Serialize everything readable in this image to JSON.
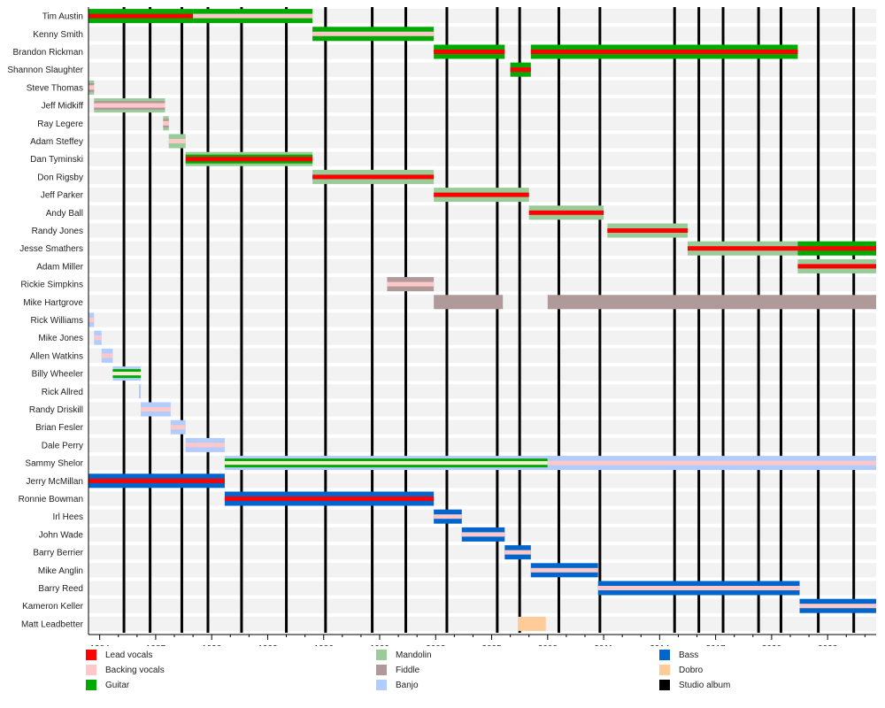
{
  "chart_data": {
    "type": "timeline",
    "xlim": [
      1983.4,
      2025.6
    ],
    "x_ticks": [
      1984,
      1987,
      1990,
      1993,
      1996,
      1999,
      2002,
      2005,
      2008,
      2011,
      2014,
      2017,
      2020,
      2023
    ],
    "colors": {
      "lead": "#ff0000",
      "backing": "#ffc8c8",
      "guitar": "#00aa00",
      "mandolin": "#99cc99",
      "fiddle": "#b09999",
      "banjo": "#b3ccff",
      "bass": "#0066cc",
      "dobro": "#ffcc99",
      "album": "#000000"
    },
    "legend": [
      {
        "key": "lead",
        "label": "Lead vocals"
      },
      {
        "key": "backing",
        "label": "Backing vocals"
      },
      {
        "key": "guitar",
        "label": "Guitar"
      },
      {
        "key": "mandolin",
        "label": "Mandolin"
      },
      {
        "key": "fiddle",
        "label": "Fiddle"
      },
      {
        "key": "banjo",
        "label": "Banjo"
      },
      {
        "key": "bass",
        "label": "Bass"
      },
      {
        "key": "dobro",
        "label": "Dobro"
      },
      {
        "key": "album",
        "label": "Studio album"
      }
    ],
    "studio_albums": [
      1985.3,
      1986.7,
      1988.4,
      1989.8,
      1991.6,
      1994.0,
      1996.1,
      1998.6,
      2000.4,
      2002.6,
      2005.3,
      2006.5,
      2008.6,
      2010.8,
      2014.8,
      2016.1,
      2017.4,
      2019.3,
      2020.5,
      2022.5,
      2024.4
    ],
    "members": [
      {
        "name": "Tim Austin",
        "bars": [
          {
            "s": 1983.4,
            "e": 1989.0,
            "i": "guitar",
            "v": "lead"
          },
          {
            "s": 1989.0,
            "e": 1995.4,
            "i": "guitar",
            "v": "backing"
          }
        ]
      },
      {
        "name": "Kenny Smith",
        "bars": [
          {
            "s": 1995.4,
            "e": 2001.9,
            "i": "guitar",
            "v": "backing"
          }
        ]
      },
      {
        "name": "Brandon Rickman",
        "bars": [
          {
            "s": 2001.9,
            "e": 2005.7,
            "i": "guitar",
            "v": "lead"
          },
          {
            "s": 2007.1,
            "e": 2021.4,
            "i": "guitar",
            "v": "lead"
          }
        ]
      },
      {
        "name": "Shannon Slaughter",
        "bars": [
          {
            "s": 2006.0,
            "e": 2007.1,
            "i": "guitar",
            "v": "lead"
          }
        ]
      },
      {
        "name": "Steve Thomas",
        "bars": [
          {
            "s": 1983.4,
            "e": 1983.7,
            "i": "mandolin",
            "i2": "fiddle",
            "v": "backing"
          }
        ]
      },
      {
        "name": "Jeff Midkiff",
        "bars": [
          {
            "s": 1983.7,
            "e": 1987.5,
            "i": "mandolin",
            "i2": "fiddle",
            "v": "backing"
          }
        ]
      },
      {
        "name": "Ray Legere",
        "bars": [
          {
            "s": 1987.4,
            "e": 1987.7,
            "i": "mandolin",
            "i2": "fiddle",
            "v": "backing"
          }
        ]
      },
      {
        "name": "Adam Steffey",
        "bars": [
          {
            "s": 1987.7,
            "e": 1988.6,
            "i": "mandolin",
            "v": "backing"
          }
        ]
      },
      {
        "name": "Dan Tyminski",
        "bars": [
          {
            "s": 1988.6,
            "e": 1995.4,
            "i": "mandolin",
            "i2": "guitar",
            "v": "lead"
          }
        ]
      },
      {
        "name": "Don Rigsby",
        "bars": [
          {
            "s": 1995.4,
            "e": 2001.9,
            "i": "mandolin",
            "v": "lead"
          }
        ]
      },
      {
        "name": "Jeff Parker",
        "bars": [
          {
            "s": 2001.9,
            "e": 2007.0,
            "i": "mandolin",
            "v": "lead"
          }
        ]
      },
      {
        "name": "Andy Ball",
        "bars": [
          {
            "s": 2007.0,
            "e": 2011.0,
            "i": "mandolin",
            "v": "lead"
          }
        ]
      },
      {
        "name": "Randy Jones",
        "bars": [
          {
            "s": 2011.2,
            "e": 2015.5,
            "i": "mandolin",
            "v": "lead"
          }
        ]
      },
      {
        "name": "Jesse Smathers",
        "bars": [
          {
            "s": 2015.5,
            "e": 2021.4,
            "i": "mandolin",
            "v": "lead"
          },
          {
            "s": 2021.4,
            "e": 2025.6,
            "i": "guitar",
            "v": "lead"
          }
        ]
      },
      {
        "name": "Adam Miller",
        "bars": [
          {
            "s": 2021.4,
            "e": 2025.6,
            "i": "mandolin",
            "v": "lead"
          }
        ]
      },
      {
        "name": "Rickie Simpkins",
        "bars": [
          {
            "s": 1999.4,
            "e": 2001.9,
            "i": "fiddle",
            "v": "backing"
          }
        ]
      },
      {
        "name": "Mike Hartgrove",
        "bars": [
          {
            "s": 2001.9,
            "e": 2005.6,
            "i": "fiddle"
          },
          {
            "s": 2008.0,
            "e": 2025.6,
            "i": "fiddle"
          }
        ]
      },
      {
        "name": "Rick Williams",
        "bars": [
          {
            "s": 1983.4,
            "e": 1983.7,
            "i": "banjo",
            "v": "backing"
          }
        ]
      },
      {
        "name": "Mike Jones",
        "bars": [
          {
            "s": 1983.7,
            "e": 1984.1,
            "i": "banjo",
            "v": "backing"
          }
        ]
      },
      {
        "name": "Allen Watkins",
        "bars": [
          {
            "s": 1984.1,
            "e": 1984.7,
            "i": "banjo",
            "v": "backing"
          }
        ]
      },
      {
        "name": "Billy Wheeler",
        "bars": [
          {
            "s": 1984.7,
            "e": 1986.2,
            "i": "banjo",
            "i2": "guitar"
          }
        ]
      },
      {
        "name": "Rick Allred",
        "bars": [
          {
            "s": 1986.1,
            "e": 1986.2,
            "i": "banjo"
          }
        ]
      },
      {
        "name": "Randy Driskill",
        "bars": [
          {
            "s": 1986.2,
            "e": 1987.8,
            "i": "banjo",
            "v": "backing"
          }
        ]
      },
      {
        "name": "Brian Fesler",
        "bars": [
          {
            "s": 1987.8,
            "e": 1988.6,
            "i": "banjo",
            "v": "backing"
          }
        ]
      },
      {
        "name": "Dale Perry",
        "bars": [
          {
            "s": 1988.6,
            "e": 1990.7,
            "i": "banjo",
            "v": "backing"
          }
        ]
      },
      {
        "name": "Sammy Shelor",
        "bars": [
          {
            "s": 1990.7,
            "e": 2008.0,
            "i": "banjo",
            "i2": "guitar"
          },
          {
            "s": 2008.0,
            "e": 2025.6,
            "i": "banjo",
            "v": "backing"
          }
        ]
      },
      {
        "name": "Jerry McMillan",
        "bars": [
          {
            "s": 1983.4,
            "e": 1990.7,
            "i": "bass",
            "v": "lead"
          }
        ]
      },
      {
        "name": "Ronnie Bowman",
        "bars": [
          {
            "s": 1990.7,
            "e": 2001.9,
            "i": "bass",
            "v": "lead"
          }
        ]
      },
      {
        "name": "Irl Hees",
        "bars": [
          {
            "s": 2001.9,
            "e": 2003.4,
            "i": "bass",
            "v": "backing"
          }
        ]
      },
      {
        "name": "John Wade",
        "bars": [
          {
            "s": 2003.4,
            "e": 2005.7,
            "i": "bass",
            "v": "backing"
          }
        ]
      },
      {
        "name": "Barry Berrier",
        "bars": [
          {
            "s": 2005.7,
            "e": 2007.1,
            "i": "bass",
            "v": "backing"
          }
        ]
      },
      {
        "name": "Mike Anglin",
        "bars": [
          {
            "s": 2007.1,
            "e": 2010.7,
            "i": "bass",
            "v": "backing"
          }
        ]
      },
      {
        "name": "Barry Reed",
        "bars": [
          {
            "s": 2010.7,
            "e": 2021.5,
            "i": "bass",
            "v": "backing"
          }
        ]
      },
      {
        "name": "Kameron Keller",
        "bars": [
          {
            "s": 2021.5,
            "e": 2025.6,
            "i": "bass",
            "v": "backing"
          }
        ]
      },
      {
        "name": "Matt Leadbetter",
        "bars": [
          {
            "s": 2006.4,
            "e": 2007.9,
            "i": "dobro"
          }
        ]
      }
    ]
  }
}
